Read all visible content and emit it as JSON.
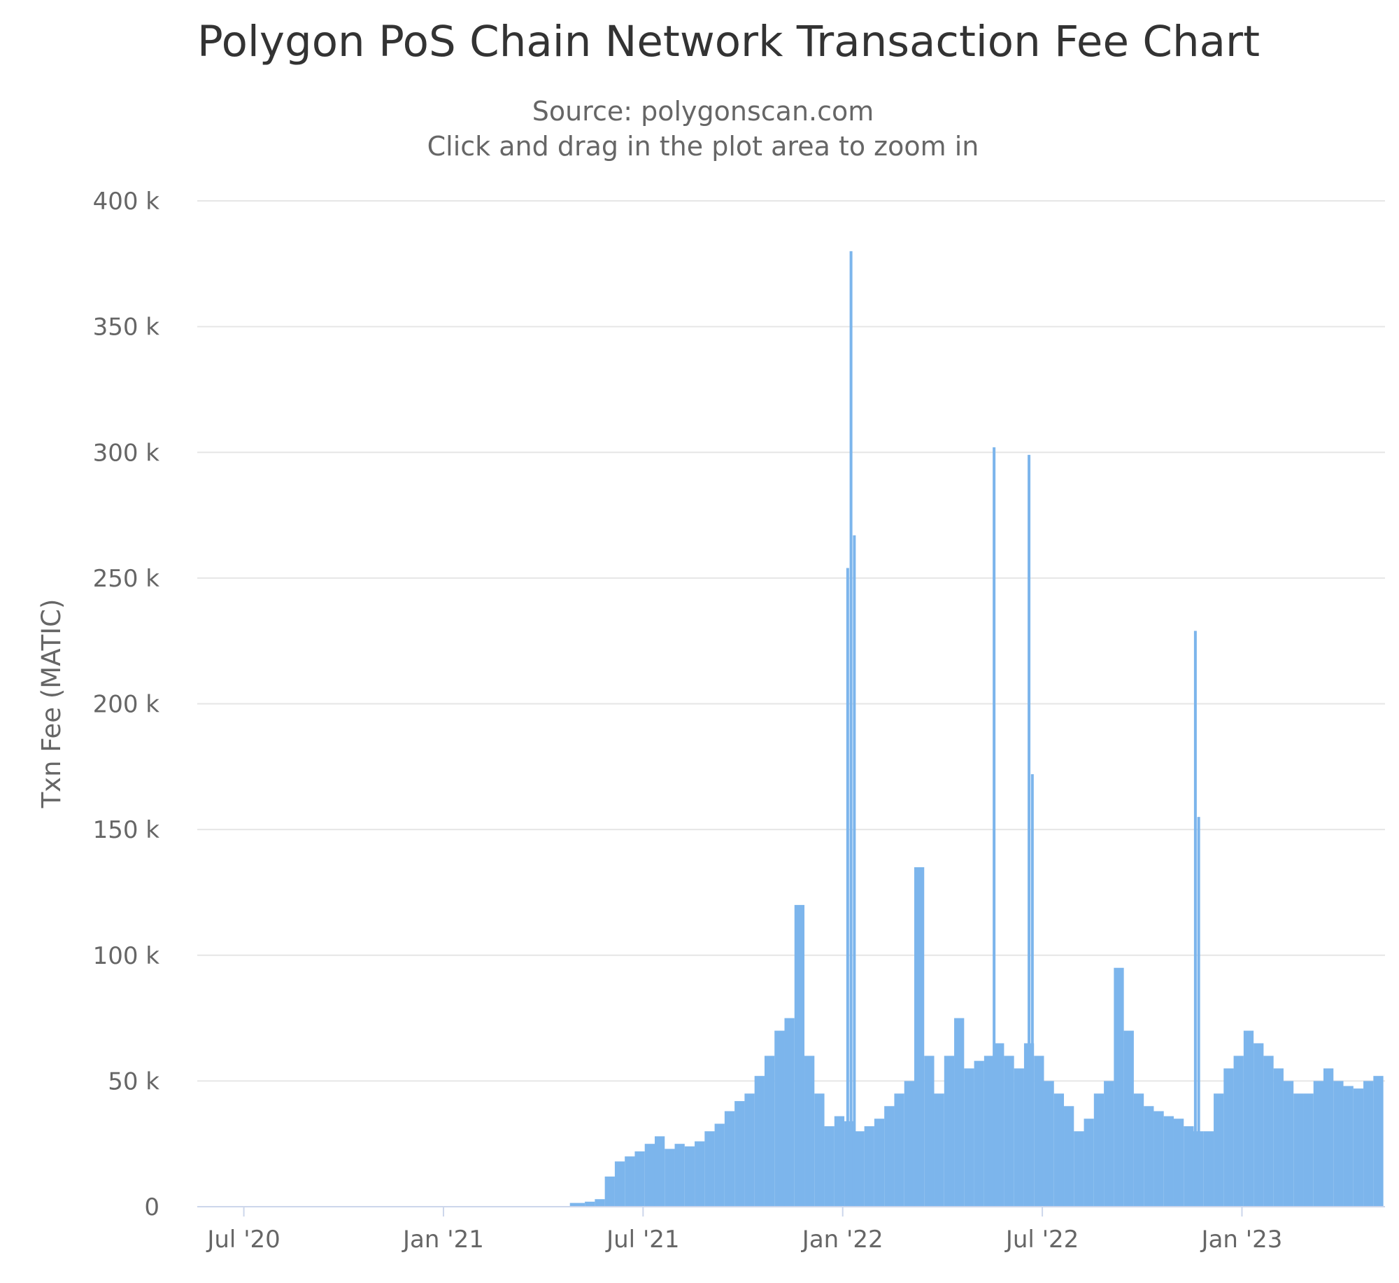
{
  "chart_data": {
    "type": "bar",
    "title": "Polygon PoS Chain Network Transaction Fee Chart",
    "subtitle": "Source: polygonscan.com",
    "instruction": "Click and drag in the plot area to zoom in",
    "xlabel": "",
    "ylabel": "Txn Fee (MATIC)",
    "ylim": [
      0,
      400000
    ],
    "y_ticks": [
      0,
      50000,
      100000,
      150000,
      200000,
      250000,
      300000,
      350000,
      400000
    ],
    "y_tick_labels": [
      "0",
      "50 k",
      "100 k",
      "150 k",
      "200 k",
      "250 k",
      "300 k",
      "350 k",
      "400 k"
    ],
    "x_tick_labels": [
      "Jul '20",
      "Jan '21",
      "Jul '21",
      "Jan '22",
      "Jul '22",
      "Jan '23"
    ],
    "x_tick_months": [
      0,
      6,
      12,
      18,
      24,
      30
    ],
    "x_range_months": [
      -1.4,
      34.3
    ],
    "grid": true,
    "legend": "none",
    "series": [
      {
        "name": "Txn Fee (MATIC)",
        "x_month": [
          -0.5,
          0.5,
          1.5,
          2.5,
          3.5,
          4.5,
          5.5,
          6.5,
          7.5,
          8.5,
          9.5,
          10.1,
          10.4,
          10.7,
          11.0,
          11.3,
          11.6,
          11.9,
          12.2,
          12.5,
          12.8,
          13.1,
          13.4,
          13.7,
          14.0,
          14.3,
          14.6,
          14.9,
          15.2,
          15.5,
          15.8,
          16.1,
          16.4,
          16.7,
          17.0,
          17.3,
          17.6,
          17.9,
          18.2,
          18.5,
          18.8,
          19.1,
          19.4,
          19.7,
          20.0,
          20.3,
          20.6,
          20.9,
          21.2,
          21.5,
          21.8,
          22.1,
          22.4,
          22.7,
          23.0,
          23.3,
          23.6,
          23.9,
          24.2,
          24.5,
          24.8,
          25.1,
          25.4,
          25.7,
          26.0,
          26.3,
          26.6,
          26.9,
          27.2,
          27.5,
          27.8,
          28.1,
          28.4,
          28.7,
          29.0,
          29.3,
          29.6,
          29.9,
          30.2,
          30.5,
          30.8,
          31.1,
          31.4,
          31.7,
          32.0,
          32.3,
          32.6,
          32.9,
          33.2,
          33.5,
          33.8,
          34.1
        ],
        "values": [
          0,
          0,
          0,
          0,
          0,
          0,
          0,
          0,
          0,
          0,
          0,
          1500,
          2000,
          3000,
          12000,
          18000,
          20000,
          22000,
          25000,
          28000,
          23000,
          25000,
          24000,
          26000,
          30000,
          33000,
          38000,
          42000,
          45000,
          52000,
          60000,
          70000,
          75000,
          120000,
          60000,
          45000,
          32000,
          36000,
          34000,
          30000,
          32000,
          35000,
          40000,
          45000,
          50000,
          135000,
          60000,
          45000,
          60000,
          75000,
          55000,
          58000,
          60000,
          65000,
          60000,
          55000,
          65000,
          60000,
          50000,
          45000,
          40000,
          30000,
          35000,
          45000,
          50000,
          95000,
          70000,
          45000,
          40000,
          38000,
          36000,
          35000,
          32000,
          30000,
          30000,
          45000,
          55000,
          60000,
          70000,
          65000,
          60000,
          55000,
          50000,
          45000,
          45000,
          50000,
          55000,
          50000,
          48000,
          47000,
          50000,
          52000
        ]
      }
    ],
    "annotations": [
      {
        "x_month": 18.25,
        "value": 380000,
        "label": ""
      },
      {
        "x_month": 18.35,
        "value": 267000,
        "label": ""
      },
      {
        "x_month": 18.15,
        "value": 254000,
        "label": ""
      },
      {
        "x_month": 22.55,
        "value": 302000,
        "label": ""
      },
      {
        "x_month": 23.6,
        "value": 299000,
        "label": ""
      },
      {
        "x_month": 23.7,
        "value": 172000,
        "label": ""
      },
      {
        "x_month": 28.6,
        "value": 229000,
        "label": ""
      },
      {
        "x_month": 28.7,
        "value": 155000,
        "label": ""
      }
    ]
  }
}
